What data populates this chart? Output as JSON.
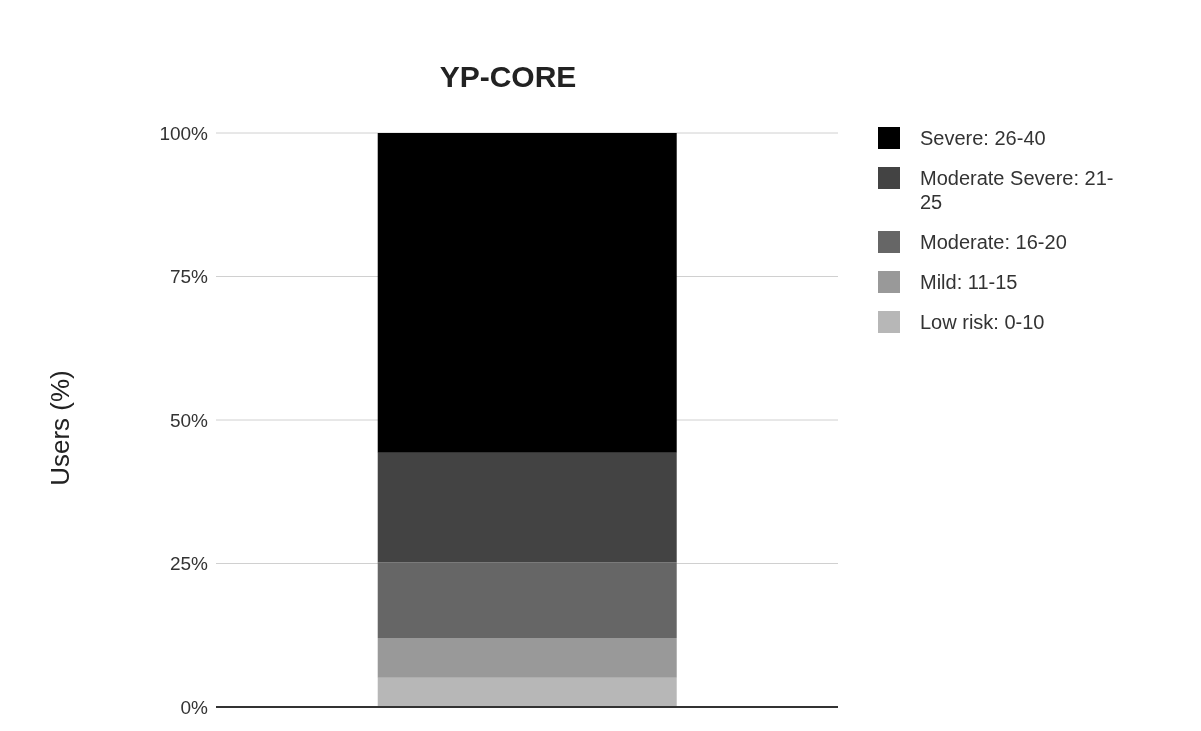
{
  "chart_data": {
    "type": "bar",
    "title": "YP-CORE",
    "ylabel": "Users (%)",
    "categories": [
      null
    ],
    "stacked": true,
    "series": [
      {
        "name": "Low risk: 0-10",
        "color": "#b7b7b7",
        "values": [
          5.1
        ]
      },
      {
        "name": "Mild: 11-15",
        "color": "#999999",
        "values": [
          6.9
        ]
      },
      {
        "name": "Moderate: 16-20",
        "color": "#666666",
        "values": [
          13.2
        ]
      },
      {
        "name": "Moderate Severe: 21-25",
        "color": "#434343",
        "values": [
          19.1
        ]
      },
      {
        "name": "Severe: 26-40",
        "color": "#000000",
        "values": [
          55.7
        ]
      }
    ],
    "ylim": [
      0,
      100
    ],
    "yticks": [
      {
        "value": 0,
        "label": "0%"
      },
      {
        "value": 25,
        "label": "25%"
      },
      {
        "value": 50,
        "label": "50%"
      },
      {
        "value": 75,
        "label": "75%"
      },
      {
        "value": 100,
        "label": "100%"
      }
    ],
    "grid": "y",
    "legend": "right"
  }
}
